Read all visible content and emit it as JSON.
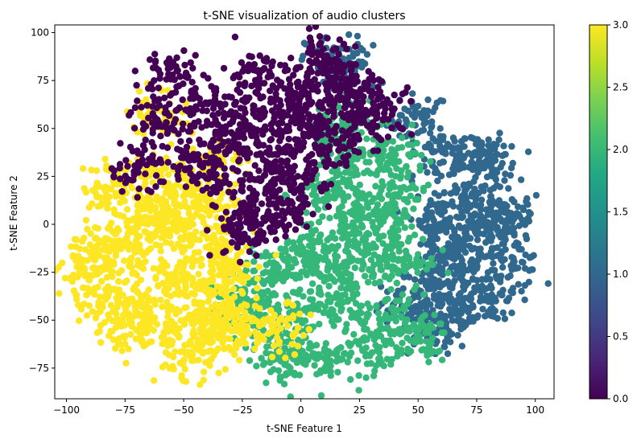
{
  "chart_data": {
    "type": "scatter",
    "title": "t-SNE visualization of audio clusters",
    "xlabel": "t-SNE Feature 1",
    "ylabel": "t-SNE Feature 2",
    "xlim": [
      -105,
      108
    ],
    "ylim": [
      -91,
      104
    ],
    "x_ticks": [
      -100,
      -75,
      -50,
      -25,
      0,
      25,
      50,
      75,
      100
    ],
    "x_tick_labels": [
      "−100",
      "−75",
      "−50",
      "−25",
      "0",
      "25",
      "50",
      "75",
      "100"
    ],
    "y_ticks": [
      -75,
      -50,
      -25,
      0,
      25,
      50,
      75,
      100
    ],
    "y_tick_labels": [
      "−75",
      "−50",
      "−25",
      "0",
      "25",
      "50",
      "75",
      "100"
    ],
    "grid": false,
    "colormap": "viridis",
    "colorbar": {
      "min": 0.0,
      "max": 3.0,
      "ticks": [
        0.0,
        0.5,
        1.0,
        1.5,
        2.0,
        2.5,
        3.0
      ],
      "tick_labels": [
        "0.0",
        "0.5",
        "1.0",
        "1.5",
        "2.0",
        "2.5",
        "3.0"
      ]
    },
    "clusters": [
      {
        "value": 0,
        "color": "#440154",
        "centers": [
          [
            -55,
            78
          ],
          [
            -40,
            62
          ],
          [
            -20,
            78
          ],
          [
            -5,
            68
          ],
          [
            10,
            85
          ],
          [
            20,
            70
          ],
          [
            35,
            60
          ],
          [
            -30,
            45
          ],
          [
            -10,
            40
          ],
          [
            5,
            50
          ],
          [
            -35,
            25
          ],
          [
            -15,
            20
          ],
          [
            0,
            25
          ],
          [
            -70,
            30
          ],
          [
            -45,
            35
          ],
          [
            -20,
            5
          ],
          [
            -5,
            5
          ],
          [
            -25,
            -5
          ],
          [
            10,
            75
          ],
          [
            25,
            55
          ],
          [
            -60,
            55
          ],
          [
            0,
            60
          ],
          [
            -20,
            55
          ],
          [
            15,
            40
          ]
        ]
      },
      {
        "value": 1,
        "color": "#31688e",
        "centers": [
          [
            50,
            55
          ],
          [
            60,
            35
          ],
          [
            75,
            38
          ],
          [
            70,
            15
          ],
          [
            60,
            5
          ],
          [
            75,
            -5
          ],
          [
            90,
            5
          ],
          [
            60,
            -20
          ],
          [
            75,
            -25
          ],
          [
            90,
            -20
          ],
          [
            55,
            -35
          ],
          [
            70,
            -45
          ],
          [
            80,
            -40
          ],
          [
            55,
            -55
          ],
          [
            45,
            -45
          ],
          [
            15,
            85
          ],
          [
            20,
            80
          ],
          [
            80,
            30
          ],
          [
            85,
            0
          ],
          [
            65,
            -10
          ]
        ]
      },
      {
        "value": 2,
        "color": "#35b779",
        "centers": [
          [
            15,
            45
          ],
          [
            25,
            30
          ],
          [
            40,
            35
          ],
          [
            10,
            15
          ],
          [
            25,
            10
          ],
          [
            40,
            15
          ],
          [
            5,
            -10
          ],
          [
            20,
            -5
          ],
          [
            35,
            -5
          ],
          [
            -15,
            -25
          ],
          [
            0,
            -20
          ],
          [
            15,
            -25
          ],
          [
            30,
            -20
          ],
          [
            45,
            -20
          ],
          [
            -20,
            -40
          ],
          [
            0,
            -45
          ],
          [
            20,
            -45
          ],
          [
            40,
            -50
          ],
          [
            -10,
            -65
          ],
          [
            10,
            -70
          ],
          [
            30,
            -65
          ],
          [
            50,
            -60
          ],
          [
            -25,
            -45
          ],
          [
            20,
            55
          ],
          [
            -5,
            -70
          ]
        ]
      },
      {
        "value": 3,
        "color": "#fde725",
        "centers": [
          [
            -80,
            20
          ],
          [
            -70,
            5
          ],
          [
            -60,
            25
          ],
          [
            -45,
            15
          ],
          [
            -35,
            5
          ],
          [
            -85,
            -10
          ],
          [
            -70,
            -15
          ],
          [
            -55,
            -5
          ],
          [
            -40,
            -10
          ],
          [
            -30,
            -20
          ],
          [
            -85,
            -35
          ],
          [
            -70,
            -40
          ],
          [
            -55,
            -30
          ],
          [
            -40,
            -30
          ],
          [
            -75,
            -55
          ],
          [
            -60,
            -55
          ],
          [
            -45,
            -50
          ],
          [
            -35,
            -60
          ],
          [
            -50,
            -70
          ],
          [
            -90,
            -25
          ],
          [
            -10,
            -55
          ],
          [
            -25,
            -50
          ],
          [
            -35,
            -45
          ],
          [
            -60,
            5
          ],
          [
            -60,
            58
          ],
          [
            -35,
            35
          ]
        ]
      }
    ]
  }
}
